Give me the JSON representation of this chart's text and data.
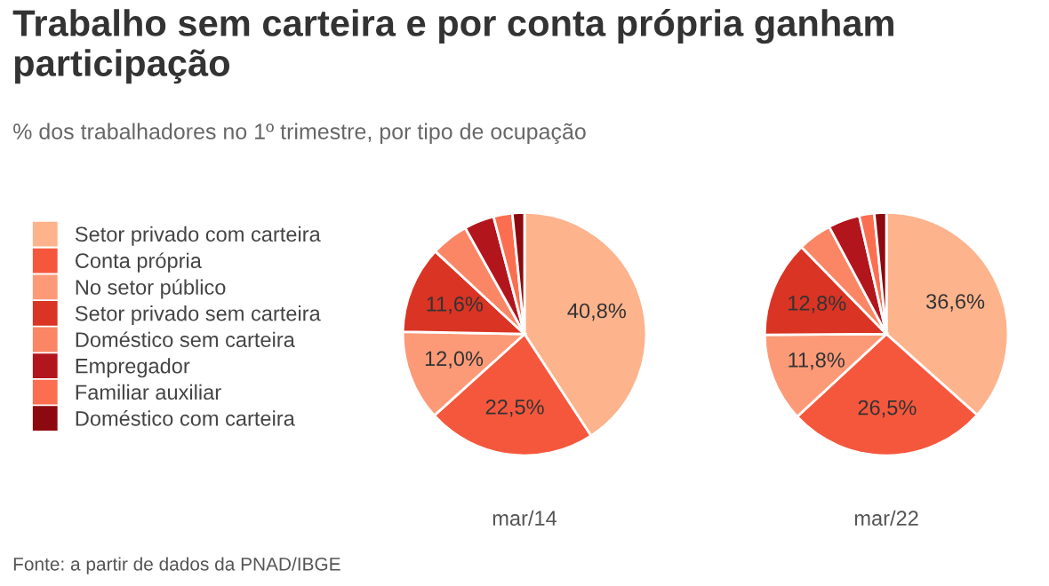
{
  "chart_data": [
    {
      "type": "pie",
      "title": "Trabalho sem carteira e por conta própria ganham participação",
      "subtitle": "% dos trabalhadores no 1º trimestre, por tipo de ocupação",
      "xlabel": "mar/14",
      "legend": "left",
      "annotations": [
        "Fonte: a partir de dados da PNAD/IBGE"
      ],
      "categories": [
        "Setor privado com carteira",
        "Conta própria",
        "No setor público",
        "Setor privado sem carteira",
        "Doméstico sem carteira",
        "Empregador",
        "Familiar auxiliar",
        "Doméstico com carteira"
      ],
      "values": [
        40.8,
        22.5,
        12.0,
        11.6,
        5.0,
        4.0,
        2.5,
        1.6
      ],
      "value_labels": [
        "40,8%",
        "22,5%",
        "12,0%",
        "11,6%",
        null,
        null,
        null,
        null
      ],
      "colors": [
        "#fdb38c",
        "#f5573d",
        "#fc9a78",
        "#d93424",
        "#fa8666",
        "#b3151d",
        "#fb6e50",
        "#8c0a0f"
      ]
    },
    {
      "type": "pie",
      "xlabel": "mar/22",
      "categories": [
        null,
        null,
        null,
        null,
        null,
        null,
        null,
        null
      ],
      "values": [
        36.6,
        26.5,
        11.8,
        12.8,
        4.5,
        4.2,
        2.0,
        1.6
      ],
      "value_labels": [
        "36,6%",
        "26,5%",
        "11,8%",
        "12,8%",
        null,
        null,
        null,
        null
      ],
      "colors": [
        "#fdb38c",
        "#f5573d",
        "#fc9a78",
        "#d93424",
        "#fa8666",
        "#b3151d",
        "#fb6e50",
        "#8c0a0f"
      ]
    }
  ]
}
